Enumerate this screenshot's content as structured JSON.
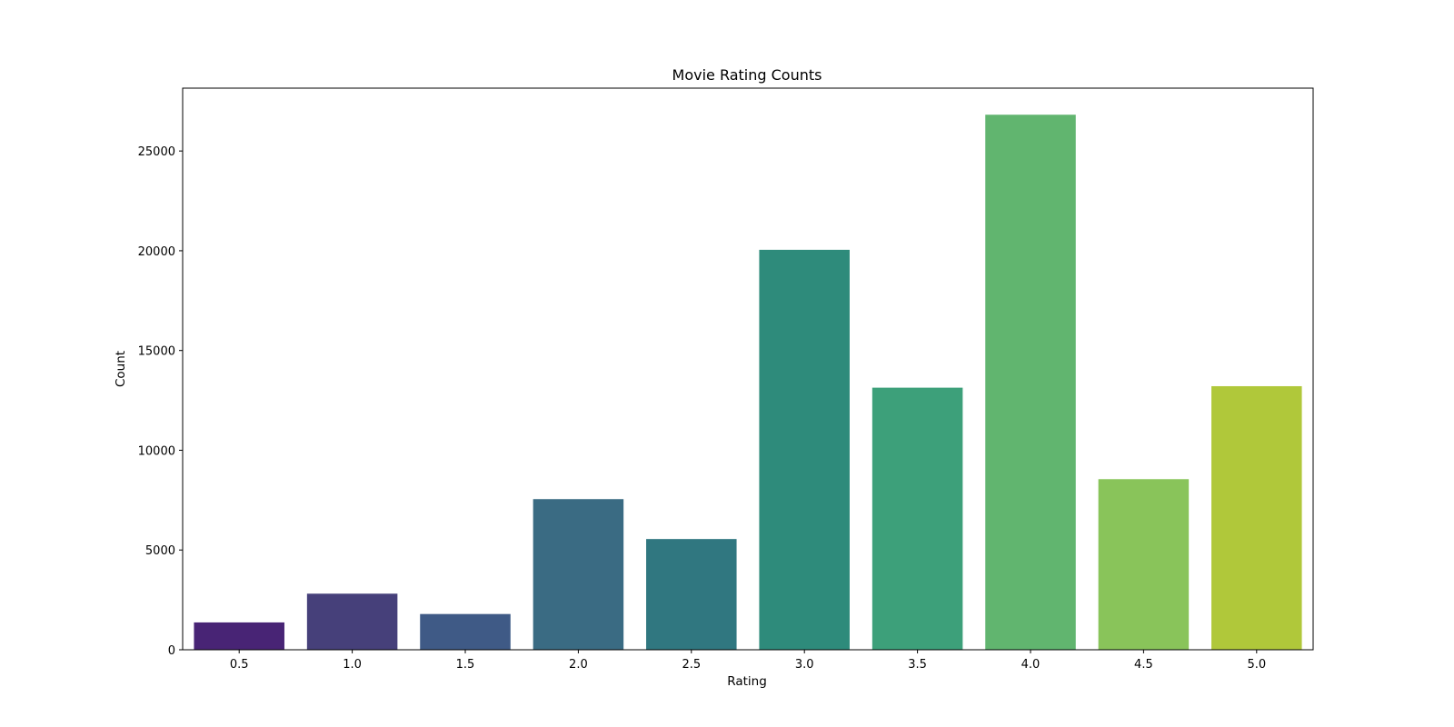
{
  "chart_data": {
    "type": "bar",
    "title": "Movie Rating Counts",
    "xlabel": "Rating",
    "ylabel": "Count",
    "categories": [
      "0.5",
      "1.0",
      "1.5",
      "2.0",
      "2.5",
      "3.0",
      "3.5",
      "4.0",
      "4.5",
      "5.0"
    ],
    "values": [
      1370,
      2811,
      1791,
      7551,
      5550,
      20047,
      13136,
      26818,
      8551,
      13211
    ],
    "colors": [
      "#482475",
      "#46407a",
      "#3f5a86",
      "#3a6b83",
      "#307780",
      "#2e8b7b",
      "#3da07a",
      "#61b56f",
      "#89c45a",
      "#b0c83a"
    ],
    "ylim": [
      0,
      28150
    ],
    "yticks": [
      0,
      5000,
      10000,
      15000,
      20000,
      25000
    ],
    "grid": false,
    "legend": "none"
  }
}
